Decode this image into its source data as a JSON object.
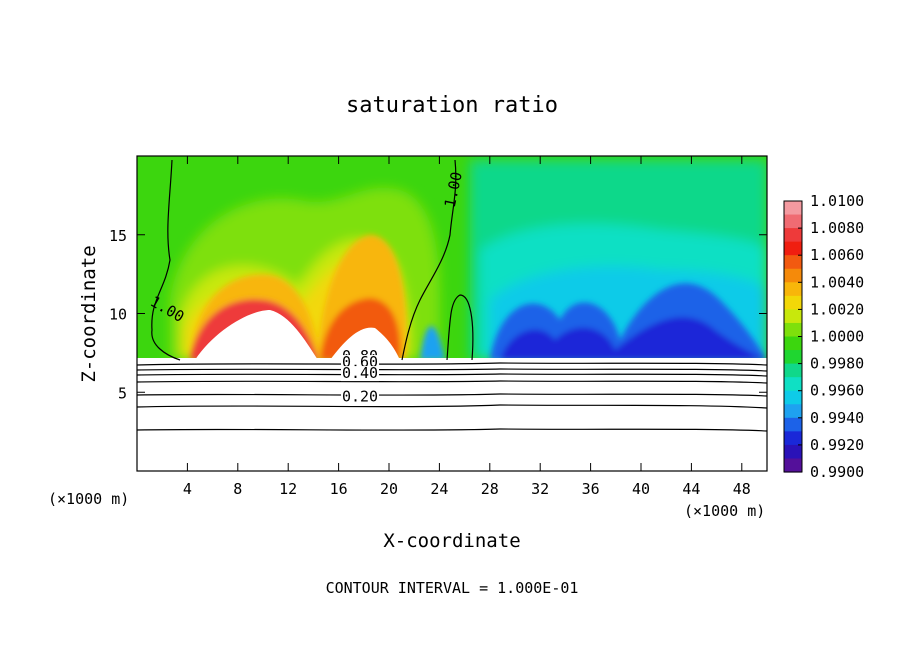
{
  "chart_data": {
    "type": "heatmap",
    "title": "saturation ratio",
    "xlabel": "X-coordinate",
    "ylabel": "Z-coordinate",
    "x_unit_left": "(×1000 m)",
    "x_unit_right": "(×1000 m)",
    "footer": "CONTOUR INTERVAL = 1.000E-01",
    "xlim": [
      0,
      50
    ],
    "ylim": [
      0,
      20
    ],
    "x_ticks": [
      4,
      8,
      12,
      16,
      20,
      24,
      28,
      32,
      36,
      40,
      44,
      48
    ],
    "y_ticks": [
      5,
      10,
      15
    ],
    "colorbar": {
      "ticks": [
        "1.0100",
        "1.0080",
        "1.0060",
        "1.0040",
        "1.0020",
        "1.0000",
        "0.9980",
        "0.9960",
        "0.9940",
        "0.9920",
        "0.9900"
      ],
      "levels": [
        1.009,
        1.008,
        1.007,
        1.006,
        1.005,
        1.004,
        1.003,
        1.002,
        1.001,
        1.0,
        0.999,
        0.998,
        0.997,
        0.996,
        0.995,
        0.994,
        0.993,
        0.992,
        0.991,
        0.99
      ],
      "colors": [
        "#f49aa0",
        "#f06b72",
        "#ee3a3a",
        "#f01e10",
        "#f25a10",
        "#f58a0a",
        "#f8b60a",
        "#f2d808",
        "#c8e80c",
        "#7ee00c",
        "#3cd60e",
        "#1fd630",
        "#10d88a",
        "#0fe0c4",
        "#0ecbe8",
        "#1ea2f0",
        "#1c62e8",
        "#1a28d8",
        "#2a12b8",
        "#54109a"
      ]
    },
    "contour_labels": [
      {
        "text": "1.00",
        "x": 2.2,
        "y": 10.0
      },
      {
        "text": "1.00",
        "x": 25.5,
        "y": 17.8
      },
      {
        "text": "0.80",
        "x": 17.7,
        "y": 7.0
      },
      {
        "text": "0.60",
        "x": 17.7,
        "y": 6.6
      },
      {
        "text": "0.40",
        "x": 17.7,
        "y": 5.9
      },
      {
        "text": "0.20",
        "x": 17.7,
        "y": 4.4
      }
    ]
  }
}
